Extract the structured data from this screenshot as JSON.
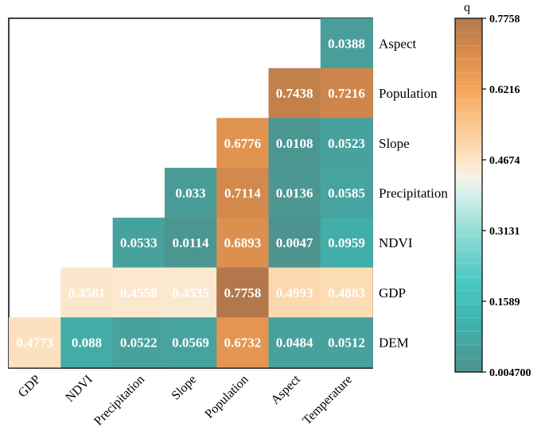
{
  "chart_data": {
    "type": "heatmap",
    "title": "",
    "columns": [
      "GDP",
      "NDVI",
      "Precipitation",
      "Slope",
      "Population",
      "Aspect",
      "Temperature"
    ],
    "rows": [
      "Aspect",
      "Population",
      "Slope",
      "Precipitation",
      "NDVI",
      "GDP",
      "DEM"
    ],
    "cells": [
      {
        "row": "Aspect",
        "col": "Temperature",
        "label": "0.0388",
        "value": 0.0388
      },
      {
        "row": "Population",
        "col": "Aspect",
        "label": "0.7438",
        "value": 0.7438
      },
      {
        "row": "Population",
        "col": "Temperature",
        "label": "0.7216",
        "value": 0.7216
      },
      {
        "row": "Slope",
        "col": "Population",
        "label": "0.6776",
        "value": 0.6776
      },
      {
        "row": "Slope",
        "col": "Aspect",
        "label": "0.0108",
        "value": 0.0108
      },
      {
        "row": "Slope",
        "col": "Temperature",
        "label": "0.0523",
        "value": 0.0523
      },
      {
        "row": "Precipitation",
        "col": "Slope",
        "label": "0.033",
        "value": 0.033
      },
      {
        "row": "Precipitation",
        "col": "Population",
        "label": "0.7114",
        "value": 0.7114
      },
      {
        "row": "Precipitation",
        "col": "Aspect",
        "label": "0.0136",
        "value": 0.0136
      },
      {
        "row": "Precipitation",
        "col": "Temperature",
        "label": "0.0585",
        "value": 0.0585
      },
      {
        "row": "NDVI",
        "col": "Precipitation",
        "label": "0.0533",
        "value": 0.0533
      },
      {
        "row": "NDVI",
        "col": "Slope",
        "label": "0.0114",
        "value": 0.0114
      },
      {
        "row": "NDVI",
        "col": "Population",
        "label": "0.6893",
        "value": 0.6893
      },
      {
        "row": "NDVI",
        "col": "Aspect",
        "label": "0.0047",
        "value": 0.0047
      },
      {
        "row": "NDVI",
        "col": "Temperature",
        "label": "0.0959",
        "value": 0.0959
      },
      {
        "row": "GDP",
        "col": "NDVI",
        "label": "0.4581",
        "value": 0.4581
      },
      {
        "row": "GDP",
        "col": "Precipitation",
        "label": "0.4558",
        "value": 0.4558
      },
      {
        "row": "GDP",
        "col": "Slope",
        "label": "0.4535",
        "value": 0.4535
      },
      {
        "row": "GDP",
        "col": "Population",
        "label": "0.7758",
        "value": 0.7758
      },
      {
        "row": "GDP",
        "col": "Aspect",
        "label": "0.4993",
        "value": 0.4993
      },
      {
        "row": "GDP",
        "col": "Temperature",
        "label": "0.4883",
        "value": 0.4883
      },
      {
        "row": "DEM",
        "col": "GDP",
        "label": "0.4773",
        "value": 0.4773
      },
      {
        "row": "DEM",
        "col": "NDVI",
        "label": "0.088",
        "value": 0.088
      },
      {
        "row": "DEM",
        "col": "Precipitation",
        "label": "0.0522",
        "value": 0.0522
      },
      {
        "row": "DEM",
        "col": "Slope",
        "label": "0.0569",
        "value": 0.0569
      },
      {
        "row": "DEM",
        "col": "Population",
        "label": "0.6732",
        "value": 0.6732
      },
      {
        "row": "DEM",
        "col": "Aspect",
        "label": "0.0484",
        "value": 0.0484
      },
      {
        "row": "DEM",
        "col": "Temperature",
        "label": "0.0512",
        "value": 0.0512
      }
    ],
    "colorbar": {
      "title": "q",
      "min": 0.0047,
      "max": 0.7758,
      "ticks": [
        {
          "value": 0.7758,
          "label": "0.7758"
        },
        {
          "value": 0.6216,
          "label": "0.6216"
        },
        {
          "value": 0.4674,
          "label": "0.4674"
        },
        {
          "value": 0.3131,
          "label": "0.3131"
        },
        {
          "value": 0.1589,
          "label": "0.1589"
        },
        {
          "value": 0.0047,
          "label": "0.004700"
        }
      ],
      "stops": [
        {
          "value": 0.0047,
          "color": "#4d9490"
        },
        {
          "value": 0.12,
          "color": "#3fb5b0"
        },
        {
          "value": 0.2,
          "color": "#48c8c2"
        },
        {
          "value": 0.3131,
          "color": "#95dcd6"
        },
        {
          "value": 0.39,
          "color": "#d2efea"
        },
        {
          "value": 0.43,
          "color": "#f5f2e6"
        },
        {
          "value": 0.4674,
          "color": "#fde4c4"
        },
        {
          "value": 0.55,
          "color": "#fbc48a"
        },
        {
          "value": 0.6216,
          "color": "#f6a65a"
        },
        {
          "value": 0.7,
          "color": "#d98c4c"
        },
        {
          "value": 0.7758,
          "color": "#b2784b"
        }
      ]
    }
  }
}
